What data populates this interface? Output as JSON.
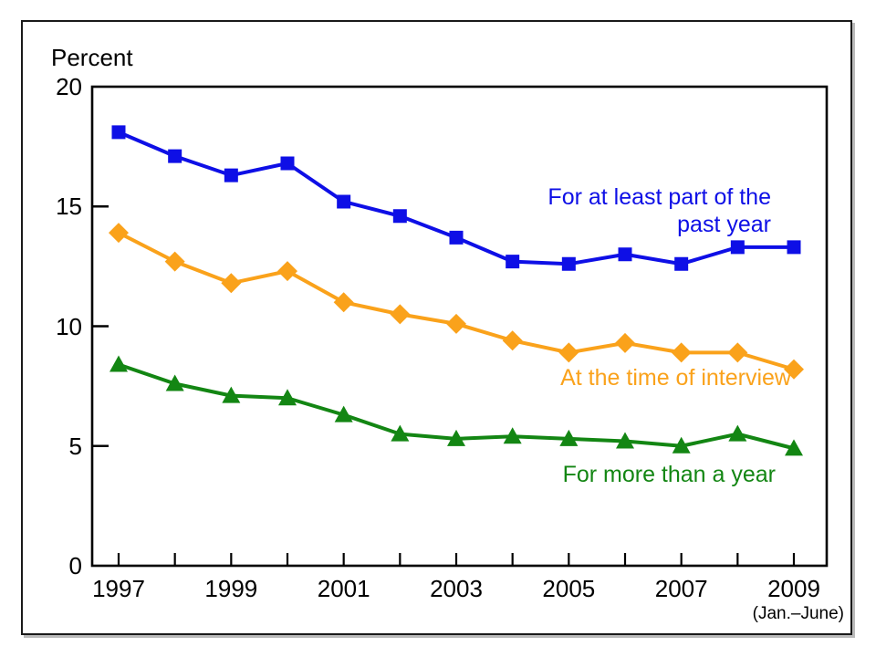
{
  "chart_data": {
    "type": "line",
    "ylabel": "Percent",
    "x_note": "(Jan.–June)",
    "x": [
      1997,
      1998,
      1999,
      2000,
      2001,
      2002,
      2003,
      2004,
      2005,
      2006,
      2007,
      2008,
      2009
    ],
    "xtick_labeled_years": [
      1997,
      1999,
      2001,
      2003,
      2005,
      2007,
      2009
    ],
    "xtick_labels": [
      "1997",
      "1999",
      "2001",
      "2003",
      "2005",
      "2007",
      "2009"
    ],
    "ylim": [
      0,
      20
    ],
    "yticks": [
      0,
      5,
      10,
      15,
      20
    ],
    "grid": false,
    "legend_position": "inline-annotations",
    "series": [
      {
        "name": "For at least part of the past year",
        "label_lines": [
          "For at least part of the",
          "past year"
        ],
        "color": "#0e0fe6",
        "marker": "square",
        "values": [
          18.1,
          17.1,
          16.3,
          16.8,
          15.2,
          14.6,
          13.7,
          12.7,
          12.6,
          13.0,
          12.6,
          13.3,
          13.3
        ]
      },
      {
        "name": "At the time of interview",
        "label_lines": [
          "At the time of interview"
        ],
        "color": "#faa21b",
        "marker": "diamond",
        "values": [
          13.9,
          12.7,
          11.8,
          12.3,
          11.0,
          10.5,
          10.1,
          9.4,
          8.9,
          9.3,
          8.9,
          8.9,
          8.2
        ]
      },
      {
        "name": "For more than a year",
        "label_lines": [
          "For more than a year"
        ],
        "color": "#138613",
        "marker": "triangle",
        "values": [
          8.4,
          7.6,
          7.1,
          7.0,
          6.3,
          5.5,
          5.3,
          5.4,
          5.3,
          5.2,
          5.0,
          5.5,
          4.9
        ]
      }
    ]
  }
}
